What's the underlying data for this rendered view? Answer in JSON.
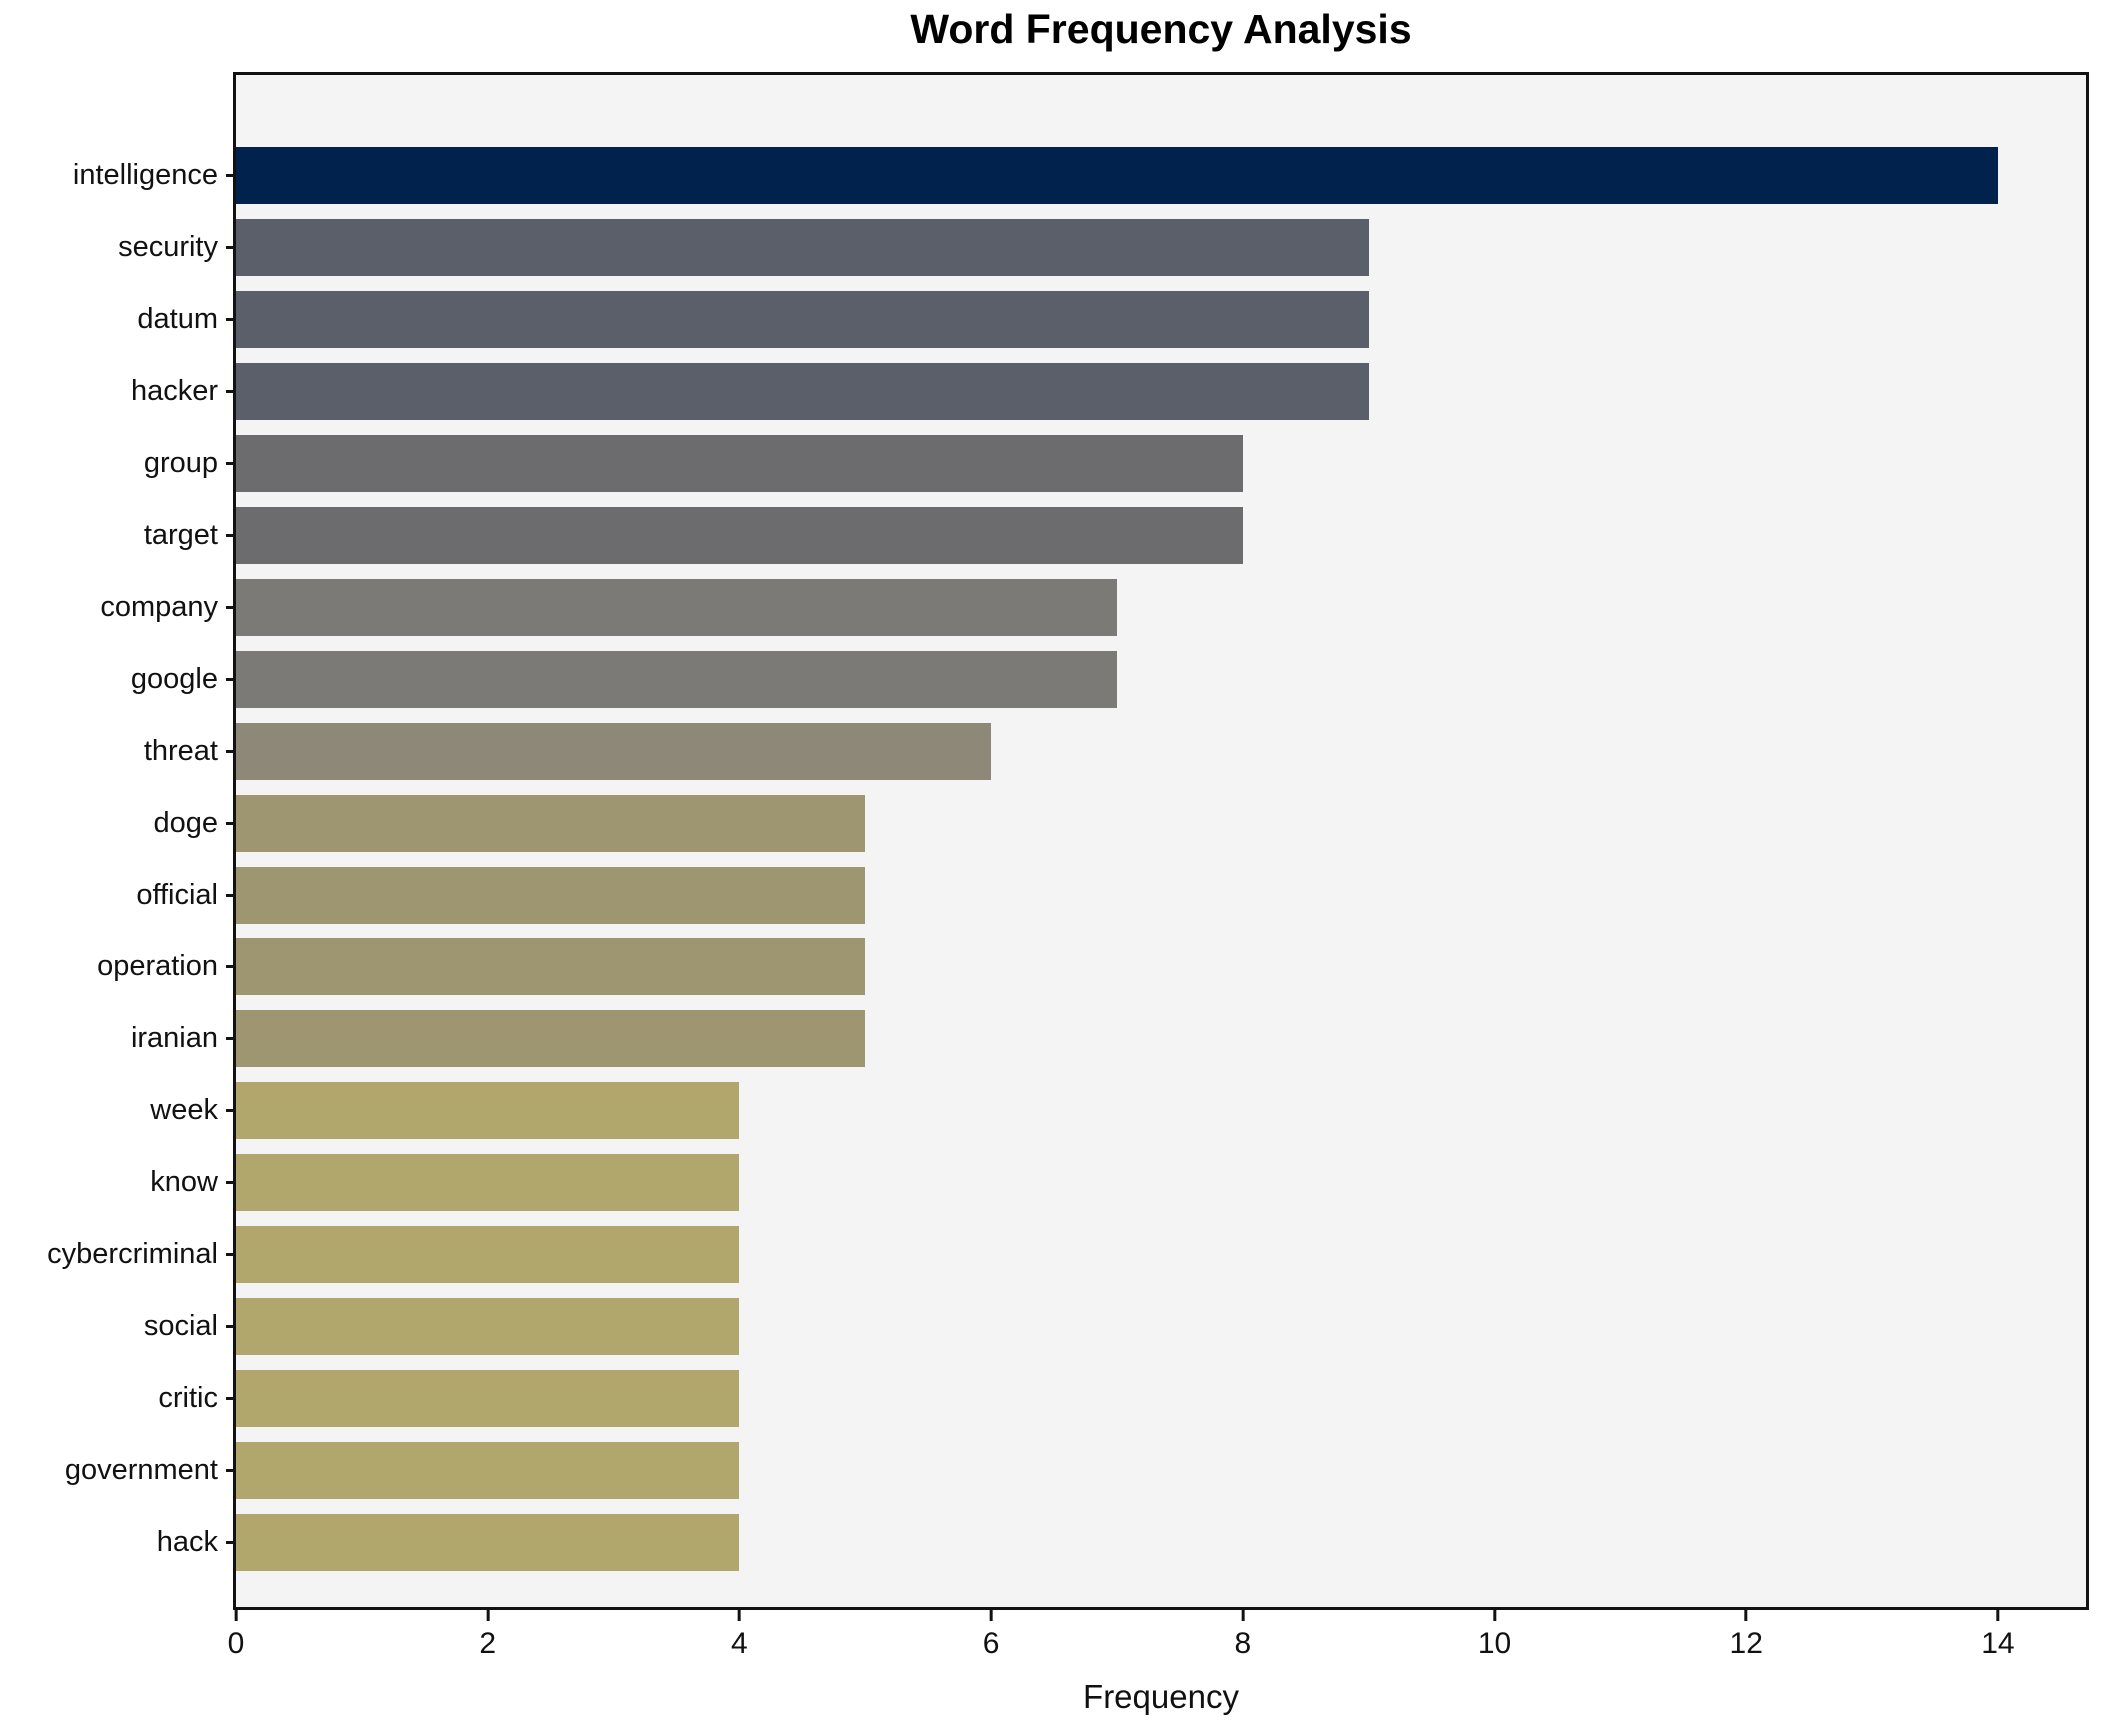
{
  "title": "Word Frequency Analysis",
  "chart_data": {
    "type": "bar",
    "orientation": "horizontal",
    "title": "Word Frequency Analysis",
    "xlabel": "Frequency",
    "ylabel": "",
    "xlim": [
      0,
      14.7
    ],
    "x_ticks": [
      0,
      2,
      4,
      6,
      8,
      10,
      12,
      14
    ],
    "grid": false,
    "legend": null,
    "plot_background": "#f5f4f5",
    "figure_background": "#ffffff",
    "frame_color": "#121212",
    "categories": [
      "intelligence",
      "security",
      "datum",
      "hacker",
      "group",
      "target",
      "company",
      "google",
      "threat",
      "doge",
      "official",
      "operation",
      "iranian",
      "week",
      "know",
      "cybercriminal",
      "social",
      "critic",
      "government",
      "hack"
    ],
    "values": [
      14,
      9,
      9,
      9,
      8,
      8,
      7,
      7,
      6,
      5,
      5,
      5,
      5,
      4,
      4,
      4,
      4,
      4,
      4,
      4
    ],
    "bar_colors": [
      "#02224e",
      "#5b5f6a",
      "#5b5f6a",
      "#5b5f6a",
      "#6c6c6e",
      "#6c6c6e",
      "#7b7a76",
      "#7b7a76",
      "#8d8878",
      "#9d9671",
      "#9d9671",
      "#9d9671",
      "#9d9671",
      "#b1a76c",
      "#b1a76c",
      "#b1a76c",
      "#b1a76c",
      "#b1a76c",
      "#b1a76c",
      "#b1a76c"
    ]
  }
}
